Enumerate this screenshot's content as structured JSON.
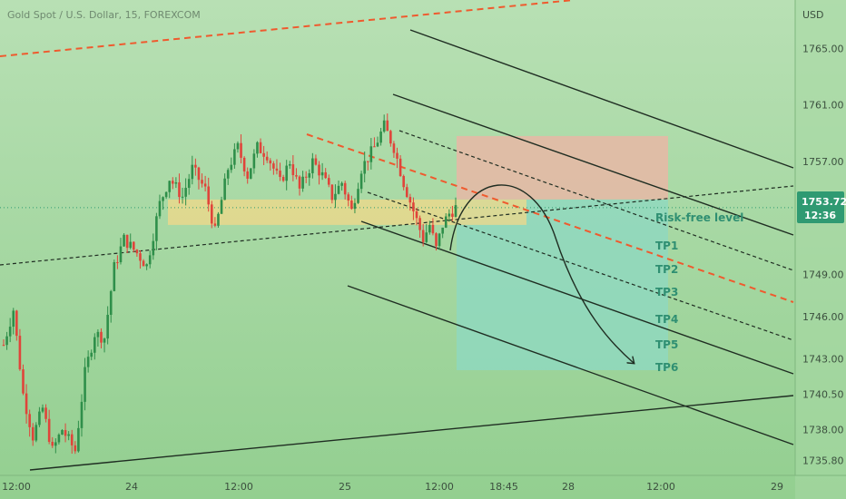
{
  "header": {
    "symbol_title": "Gold Spot / U.S. Dollar, 15, FOREXCOM",
    "currency": "USD"
  },
  "price_tag": {
    "price": "1753.72",
    "countdown": "12:36"
  },
  "colors": {
    "background_top": "#b5deb0",
    "background_bottom": "#92cf8f",
    "bull_candle": "#2f8f4a",
    "bear_candle": "#e0443a",
    "zone_yellow": "#f2d88a",
    "risk_zone": "#e7b7a6",
    "profit_zone": "#8fd8c0",
    "dashed_orange": "#ef5a2e",
    "price_tag_bg": "#2f9a72"
  },
  "annotations": {
    "labels": [
      "Risk-free level",
      "TP1",
      "TP2",
      "TP3",
      "TP4",
      "TP5",
      "TP6"
    ]
  },
  "chart_data": {
    "type": "candlestick",
    "title": "Gold Spot / U.S. Dollar, 15, FOREXCOM",
    "y_unit": "USD",
    "ylim": [
      1735.0,
      1767.8
    ],
    "y_ticks": [
      1735.8,
      1738.0,
      1740.5,
      1743.0,
      1746.0,
      1749.0,
      1753.0,
      1757.0,
      1761.0,
      1765.0
    ],
    "x_ticks": [
      "12:00",
      "24",
      "12:00",
      "25",
      "12:00",
      "18:45",
      "28",
      "12:00",
      "29"
    ],
    "current_price": 1753.72,
    "grid": false,
    "legend": "none",
    "close_path": [
      [
        0,
        1744.0
      ],
      [
        3,
        1746.5
      ],
      [
        6,
        1740.5
      ],
      [
        9,
        1737.5
      ],
      [
        12,
        1739.5
      ],
      [
        15,
        1736.5
      ],
      [
        18,
        1738.0
      ],
      [
        22,
        1736.5
      ],
      [
        25,
        1742.0
      ],
      [
        28,
        1744.8
      ],
      [
        31,
        1744.5
      ],
      [
        34,
        1749.5
      ],
      [
        37,
        1751.5
      ],
      [
        41,
        1750.5
      ],
      [
        44,
        1749.6
      ],
      [
        48,
        1754.0
      ],
      [
        51,
        1755.8
      ],
      [
        55,
        1754.5
      ],
      [
        58,
        1756.5
      ],
      [
        62,
        1755.0
      ],
      [
        65,
        1752.0
      ],
      [
        69,
        1756.5
      ],
      [
        72,
        1758.0
      ],
      [
        75,
        1756.0
      ],
      [
        78,
        1758.0
      ],
      [
        81,
        1757.5
      ],
      [
        85,
        1755.5
      ],
      [
        88,
        1757.0
      ],
      [
        91,
        1755.0
      ],
      [
        95,
        1757.0
      ],
      [
        98,
        1756.0
      ],
      [
        101,
        1754.5
      ],
      [
        104,
        1755.5
      ],
      [
        107,
        1753.5
      ],
      [
        110,
        1756.5
      ],
      [
        114,
        1758.0
      ],
      [
        117,
        1759.5
      ],
      [
        120,
        1758.0
      ],
      [
        123,
        1755.5
      ],
      [
        126,
        1753.5
      ],
      [
        129,
        1751.5
      ],
      [
        131,
        1752.5
      ],
      [
        133,
        1750.8
      ],
      [
        135,
        1752.5
      ],
      [
        137,
        1753.3
      ],
      [
        139,
        1753.72
      ]
    ],
    "horizontal_zones": [
      {
        "name": "yellow zone",
        "y1": 1754.3,
        "y2": 1752.5
      },
      {
        "name": "stop zone",
        "y1": 1758.8,
        "y2": 1754.3
      },
      {
        "name": "target zone",
        "y1": 1754.3,
        "y2": 1742.2
      }
    ],
    "tp_levels": [
      {
        "label": "Risk-free level",
        "value": 1752.5
      },
      {
        "label": "TP1",
        "value": 1751.0
      },
      {
        "label": "TP2",
        "value": 1749.3
      },
      {
        "label": "TP3",
        "value": 1747.7
      },
      {
        "label": "TP4",
        "value": 1745.8
      },
      {
        "label": "TP5",
        "value": 1744.1
      },
      {
        "label": "TP6",
        "value": 1742.5
      }
    ]
  }
}
